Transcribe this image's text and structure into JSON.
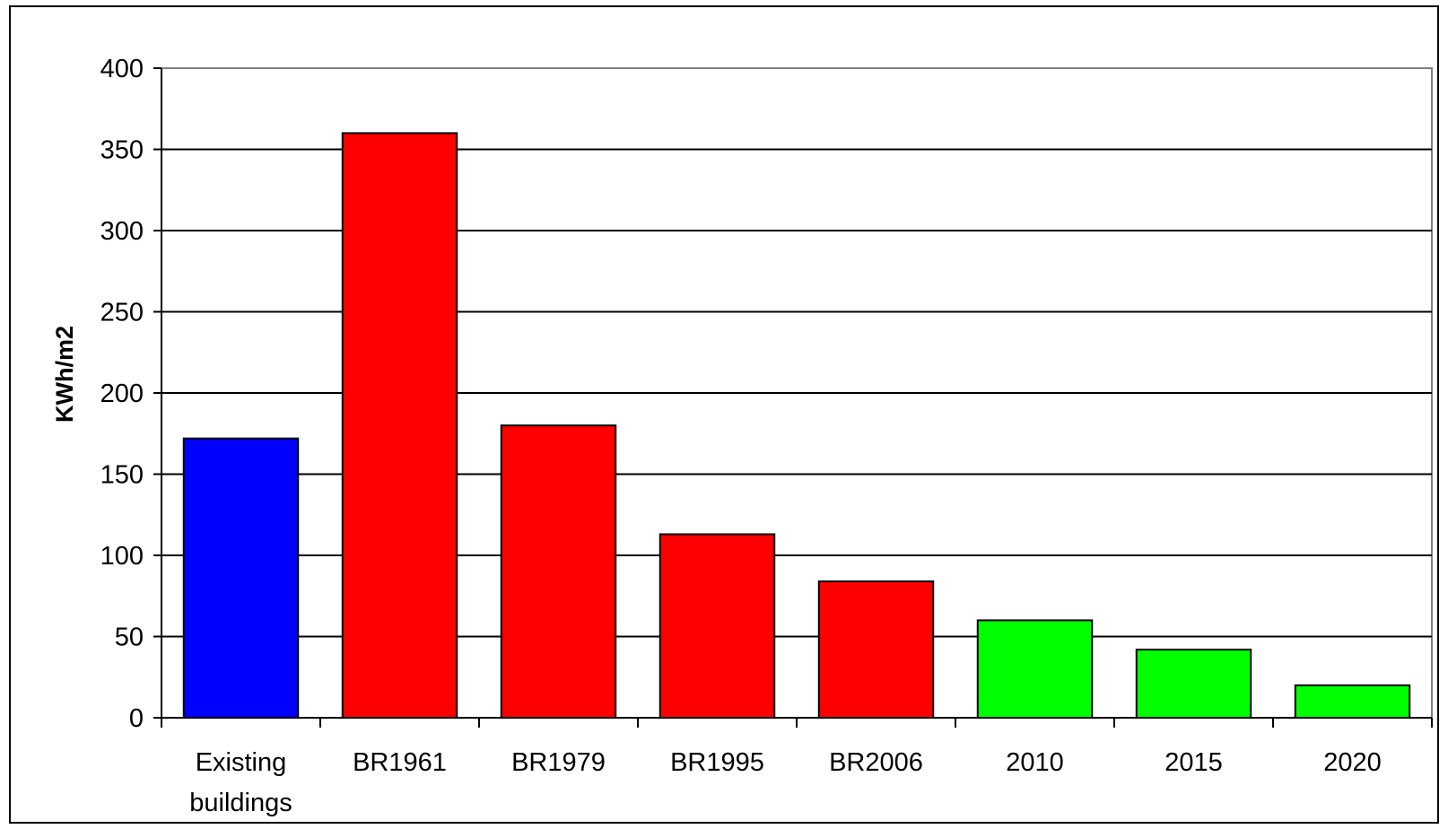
{
  "chart_data": {
    "type": "bar",
    "title": "",
    "xlabel": "",
    "ylabel": "KWh/m2",
    "ylim": [
      0,
      400
    ],
    "yticks": [
      0,
      50,
      100,
      150,
      200,
      250,
      300,
      350,
      400
    ],
    "grid": true,
    "legend": "none",
    "categories": [
      [
        "Existing",
        "buildings"
      ],
      [
        "BR1961"
      ],
      [
        "BR1979"
      ],
      [
        "BR1995"
      ],
      [
        "BR2006"
      ],
      [
        "2010"
      ],
      [
        "2015"
      ],
      [
        "2020"
      ]
    ],
    "values": [
      172,
      360,
      180,
      113,
      84,
      60,
      42,
      20
    ],
    "colors": [
      "#0000ff",
      "#ff0000",
      "#ff0000",
      "#ff0000",
      "#ff0000",
      "#00ff00",
      "#00ff00",
      "#00ff00"
    ]
  }
}
